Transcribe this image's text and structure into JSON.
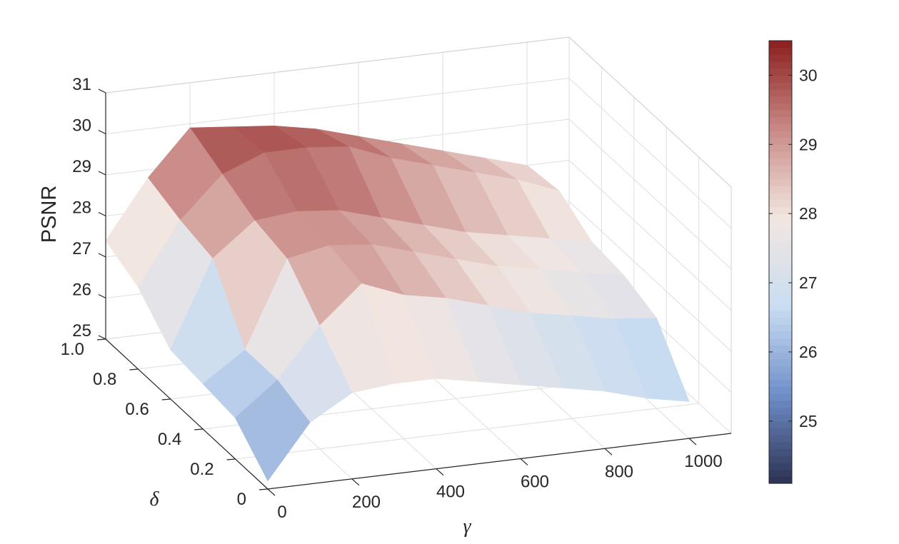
{
  "chart_data": {
    "type": "surface",
    "title": "",
    "xlabel": "γ",
    "ylabel": "δ",
    "zlabel": "PSNR",
    "x_ticks": [
      "0",
      "200",
      "400",
      "600",
      "800",
      "1000"
    ],
    "y_ticks": [
      "0",
      "0.2",
      "0.4",
      "0.6",
      "0.8",
      "1.0"
    ],
    "z_ticks": [
      "25",
      "26",
      "27",
      "28",
      "29",
      "30",
      "31"
    ],
    "colorbar_ticks": [
      "25",
      "26",
      "27",
      "28",
      "29",
      "30"
    ],
    "xlim": [
      0,
      1100
    ],
    "ylim": [
      0,
      1.0
    ],
    "zlim": [
      25,
      31
    ],
    "colorbar_range": [
      24.1,
      30.5
    ],
    "grid": true,
    "colormap": [
      "#2b3152",
      "#6e8ec8",
      "#c9ddf2",
      "#f2e6e1",
      "#c98a86",
      "#8b1f1f"
    ],
    "gamma": [
      0,
      100,
      200,
      300,
      400,
      500,
      600,
      700,
      800,
      900,
      1000
    ],
    "delta": [
      0,
      0.2,
      0.4,
      0.6,
      0.8,
      1.0
    ],
    "psnr": [
      [
        25.2,
        26.5,
        27.1,
        27.2,
        27.2,
        27.0,
        26.8,
        26.6,
        26.4,
        26.1,
        25.9
      ],
      [
        26.0,
        26.8,
        28.0,
        28.9,
        28.5,
        28.3,
        28.0,
        27.7,
        27.5,
        27.3,
        27.2
      ],
      [
        26.1,
        26.8,
        28.9,
        29.1,
        29.0,
        28.7,
        28.4,
        28.1,
        27.9,
        27.7,
        27.5
      ],
      [
        26.2,
        28.3,
        29.1,
        29.2,
        29.1,
        28.8,
        28.5,
        28.2,
        28.0,
        27.8,
        27.6
      ],
      [
        27.0,
        28.5,
        29.5,
        29.9,
        29.9,
        29.8,
        29.4,
        29.1,
        28.8,
        28.5,
        28.1
      ],
      [
        27.4,
        28.8,
        29.9,
        29.8,
        29.7,
        29.5,
        29.2,
        28.9,
        28.6,
        28.3,
        28.0
      ]
    ]
  }
}
